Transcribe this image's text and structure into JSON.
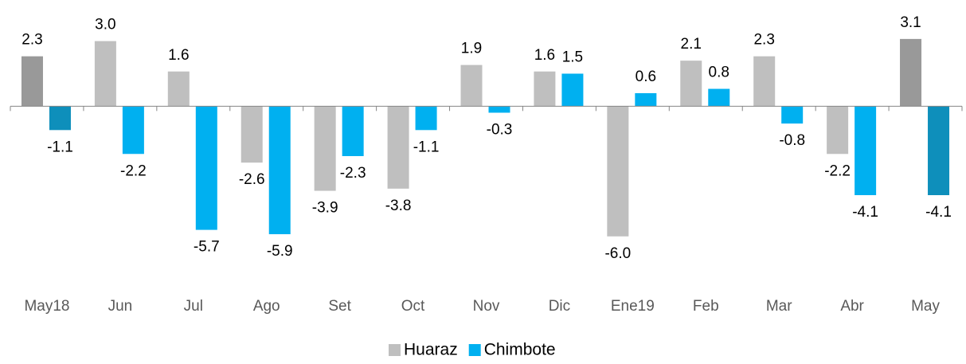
{
  "chart_data": {
    "type": "bar",
    "categories": [
      "May18",
      "Jun",
      "Jul",
      "Ago",
      "Set",
      "Oct",
      "Nov",
      "Dic",
      "Ene19",
      "Feb",
      "Mar",
      "Abr",
      "May"
    ],
    "series": [
      {
        "name": "Huaraz",
        "color": "#bfbfbf",
        "colors": [
          "#999999",
          "#bfbfbf",
          "#bfbfbf",
          "#bfbfbf",
          "#bfbfbf",
          "#bfbfbf",
          "#bfbfbf",
          "#bfbfbf",
          "#bfbfbf",
          "#bfbfbf",
          "#bfbfbf",
          "#bfbfbf",
          "#999999"
        ],
        "values": [
          2.3,
          3.0,
          1.6,
          -2.6,
          -3.9,
          -3.8,
          1.9,
          1.6,
          -6.0,
          2.1,
          2.3,
          -2.2,
          3.1
        ],
        "value_labels": [
          "2.3",
          "3.0",
          "1.6",
          "-2.6",
          "-3.9",
          "-3.8",
          "1.9",
          "1.6",
          "-6.0",
          "2.1",
          "2.3",
          "-2.2",
          "3.1"
        ]
      },
      {
        "name": "Chimbote",
        "color": "#00b0f0",
        "colors": [
          "#0e8fbb",
          "#00b0f0",
          "#00b0f0",
          "#00b0f0",
          "#00b0f0",
          "#00b0f0",
          "#00b0f0",
          "#00b0f0",
          "#00b0f0",
          "#00b0f0",
          "#00b0f0",
          "#00b0f0",
          "#0e8fbb"
        ],
        "values": [
          -1.1,
          -2.2,
          -5.7,
          -5.9,
          -2.3,
          -1.1,
          -0.3,
          1.5,
          0.6,
          0.8,
          -0.8,
          -4.1,
          -4.1
        ],
        "value_labels": [
          "-1.1",
          "-2.2",
          "-5.7",
          "-5.9",
          "-2.3",
          "-1.1",
          "-0.3",
          "1.5",
          "0.6",
          "0.8",
          "-0.8",
          "-4.1",
          "-4.1"
        ]
      }
    ],
    "ylim": [
      -7,
      3.5
    ],
    "legend": "bottom"
  }
}
